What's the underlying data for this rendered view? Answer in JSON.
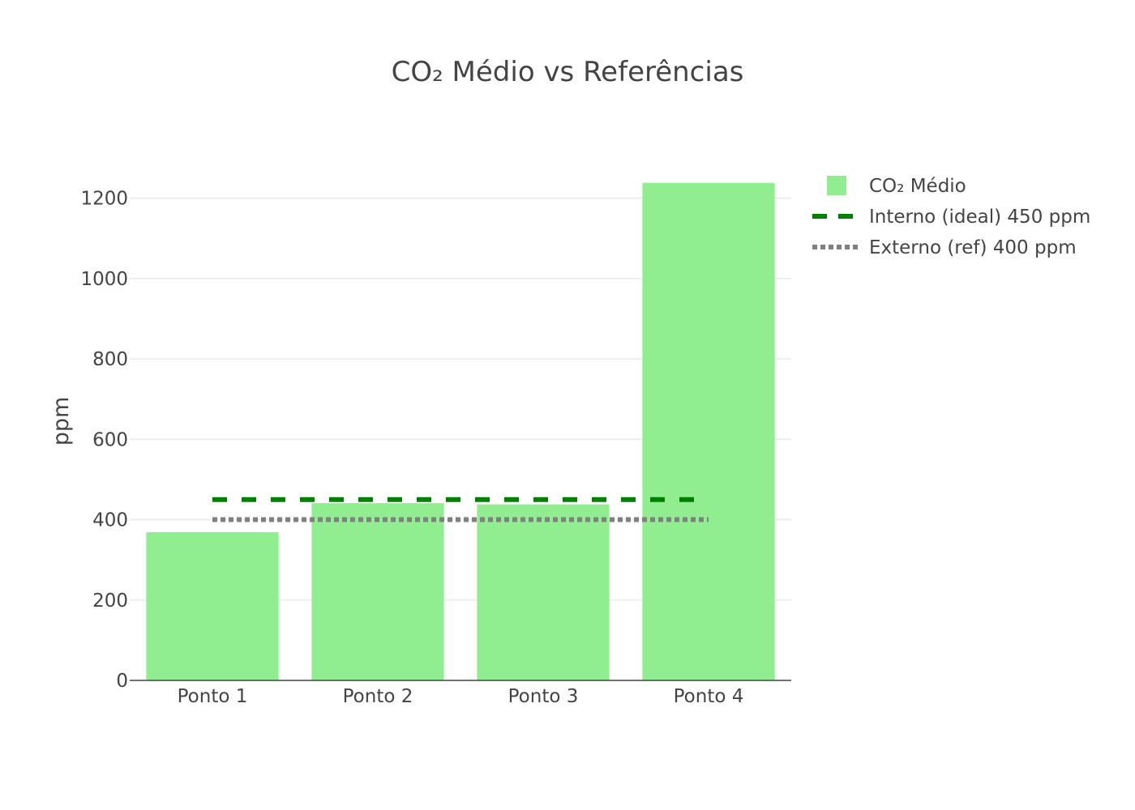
{
  "chart_data": {
    "type": "bar",
    "title": "CO₂ Médio vs Referências",
    "xlabel": "",
    "ylabel": "ppm",
    "categories": [
      "Ponto 1",
      "Ponto 2",
      "Ponto 3",
      "Ponto 4"
    ],
    "series": [
      {
        "name": "CO₂ Médio",
        "type": "bar",
        "values": [
          369,
          441,
          438,
          1238
        ],
        "color": "#90ee90"
      }
    ],
    "reference_lines": [
      {
        "name": "Interno (ideal) 450 ppm",
        "value": 450,
        "style": "dashed",
        "color": "#008000"
      },
      {
        "name": "Externo (ref) 400 ppm",
        "value": 400,
        "style": "dotted",
        "color": "#808080"
      }
    ],
    "ylim": [
      0,
      1300
    ],
    "yticks": [
      0,
      200,
      400,
      600,
      800,
      1000,
      1200
    ],
    "grid": true,
    "legend_position": "top-right"
  }
}
